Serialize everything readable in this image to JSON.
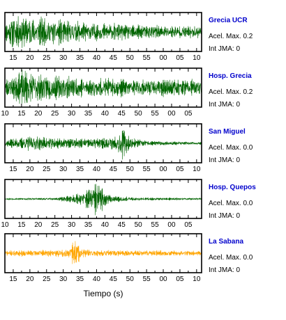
{
  "chart_data": {
    "type": "line",
    "xlabel": "Tiempo (s)",
    "panels": [
      {
        "name": "Grecia UCR",
        "acel_label": "Acel. Max. 0.2",
        "jma_label": "Int JMA: 0",
        "color": "#006400",
        "tick_labels": [
          "15",
          "20",
          "25",
          "30",
          "35",
          "40",
          "45",
          "50",
          "55",
          "00",
          "05",
          "10"
        ],
        "x_start": 12.5,
        "x_end": 71.5,
        "envelope": [
          [
            12.5,
            0.55
          ],
          [
            15,
            1.0
          ],
          [
            20,
            0.95
          ],
          [
            25,
            0.85
          ],
          [
            30,
            0.7
          ],
          [
            40,
            0.55
          ],
          [
            50,
            0.45
          ],
          [
            60,
            0.4
          ],
          [
            71.5,
            0.35
          ]
        ],
        "seed": 11
      },
      {
        "name": "Hosp. Grecia",
        "acel_label": "Acel. Max. 0.2",
        "jma_label": "Int JMA: 0",
        "color": "#006400",
        "tick_labels": [
          "10",
          "15",
          "20",
          "25",
          "30",
          "35",
          "40",
          "45",
          "50",
          "55",
          "00",
          "05"
        ],
        "x_start": 10,
        "x_end": 69,
        "envelope": [
          [
            10,
            0.5
          ],
          [
            15,
            1.0
          ],
          [
            20,
            0.85
          ],
          [
            25,
            0.7
          ],
          [
            35,
            0.55
          ],
          [
            45,
            0.5
          ],
          [
            60,
            0.5
          ],
          [
            69,
            0.45
          ]
        ],
        "seed": 23
      },
      {
        "name": "San Miguel",
        "acel_label": "Acel. Max. 0.0",
        "jma_label": "Int JMA: 0",
        "color": "#006400",
        "tick_labels": [
          "15",
          "20",
          "25",
          "30",
          "35",
          "40",
          "45",
          "50",
          "55",
          "00",
          "05",
          "10"
        ],
        "x_start": 12.5,
        "x_end": 71.5,
        "envelope": [
          [
            12.5,
            0.2
          ],
          [
            18,
            0.35
          ],
          [
            20,
            0.45
          ],
          [
            30,
            0.3
          ],
          [
            40,
            0.3
          ],
          [
            46,
            0.45
          ],
          [
            48,
            1.0
          ],
          [
            50,
            0.35
          ],
          [
            55,
            0.15
          ],
          [
            71.5,
            0.08
          ]
        ],
        "seed": 37
      },
      {
        "name": "Hosp. Quepos",
        "acel_label": "Acel. Max. 0.0",
        "jma_label": "Int JMA: 0",
        "color": "#006400",
        "tick_labels": [
          "10",
          "15",
          "20",
          "25",
          "30",
          "35",
          "40",
          "45",
          "50",
          "55",
          "00",
          "05"
        ],
        "x_start": 10,
        "x_end": 69,
        "envelope": [
          [
            10,
            0.05
          ],
          [
            25,
            0.06
          ],
          [
            29,
            0.2
          ],
          [
            33,
            0.35
          ],
          [
            36,
            0.8
          ],
          [
            38,
            1.0
          ],
          [
            40,
            0.45
          ],
          [
            43,
            0.2
          ],
          [
            48,
            0.1
          ],
          [
            69,
            0.05
          ]
        ],
        "seed": 53
      },
      {
        "name": "La Sabana",
        "acel_label": "Acel. Max. 0.0",
        "jma_label": "Int JMA: 0",
        "color": "#ffa500",
        "tick_labels": [
          "15",
          "20",
          "25",
          "30",
          "35",
          "40",
          "45",
          "50",
          "55",
          "00",
          "05",
          "10"
        ],
        "x_start": 12.5,
        "x_end": 71.5,
        "envelope": [
          [
            12.5,
            0.18
          ],
          [
            28,
            0.2
          ],
          [
            32,
            0.3
          ],
          [
            33.5,
            1.0
          ],
          [
            35,
            0.35
          ],
          [
            38,
            0.2
          ],
          [
            50,
            0.18
          ],
          [
            71.5,
            0.15
          ]
        ],
        "seed": 71
      }
    ]
  }
}
